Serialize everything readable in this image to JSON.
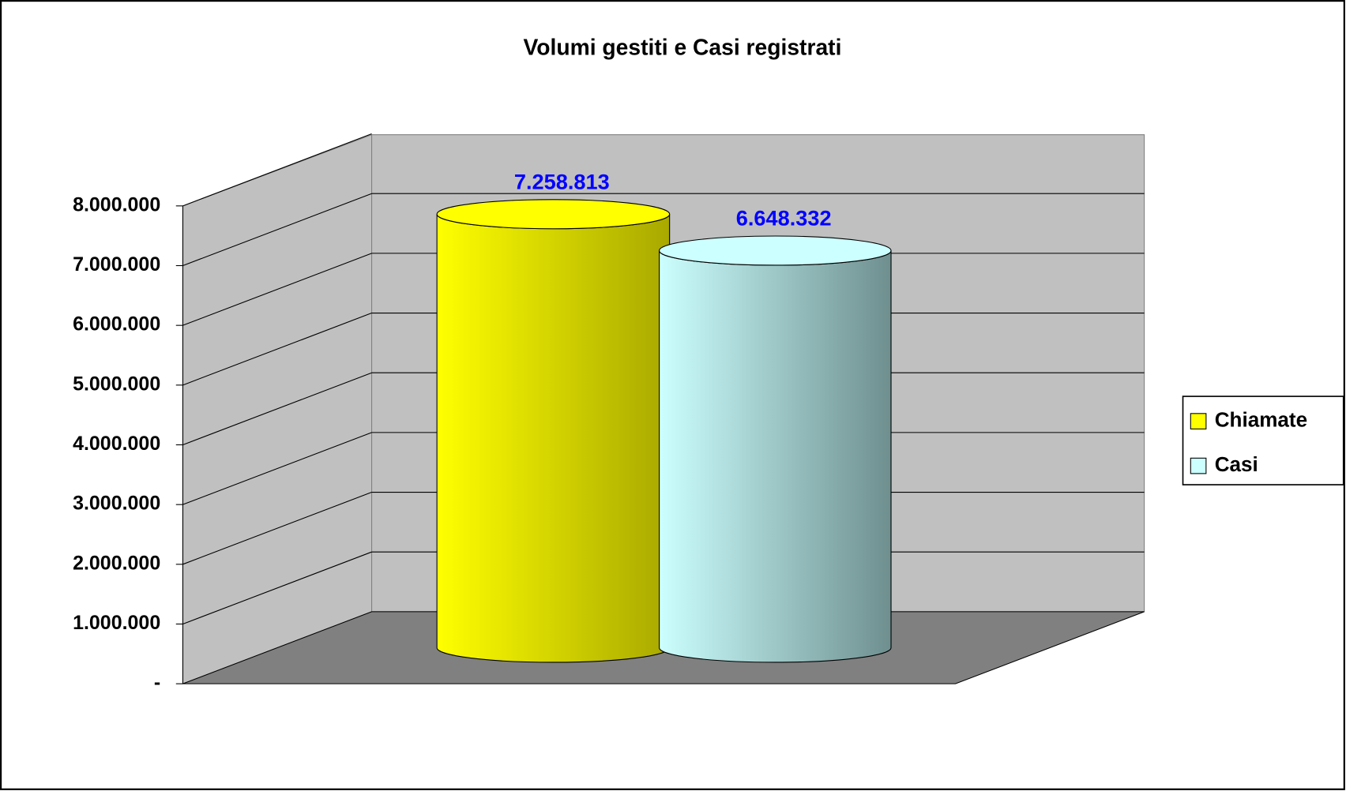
{
  "chart_data": {
    "type": "bar3d_cylinder",
    "title": "Volumi gestiti e Casi registrati",
    "categories": [
      null
    ],
    "series": [
      {
        "name": "Chiamate",
        "color": "#ffff00",
        "values": [
          7258813
        ],
        "value_labels": [
          "7.258.813"
        ]
      },
      {
        "name": "Casi",
        "color": "#ccffff",
        "values": [
          6648332
        ],
        "value_labels": [
          "6.648.332"
        ]
      }
    ],
    "ylim": [
      0,
      8000000
    ],
    "yticks": [
      {
        "value": 0,
        "label": "-"
      },
      {
        "value": 1000000,
        "label": "1.000.000"
      },
      {
        "value": 2000000,
        "label": "2.000.000"
      },
      {
        "value": 3000000,
        "label": "3.000.000"
      },
      {
        "value": 4000000,
        "label": "4.000.000"
      },
      {
        "value": 5000000,
        "label": "5.000.000"
      },
      {
        "value": 6000000,
        "label": "6.000.000"
      },
      {
        "value": 7000000,
        "label": "7.000.000"
      },
      {
        "value": 8000000,
        "label": "8.000.000"
      }
    ],
    "grid": true,
    "legend": "right",
    "value_label_color": "#0000ff"
  }
}
